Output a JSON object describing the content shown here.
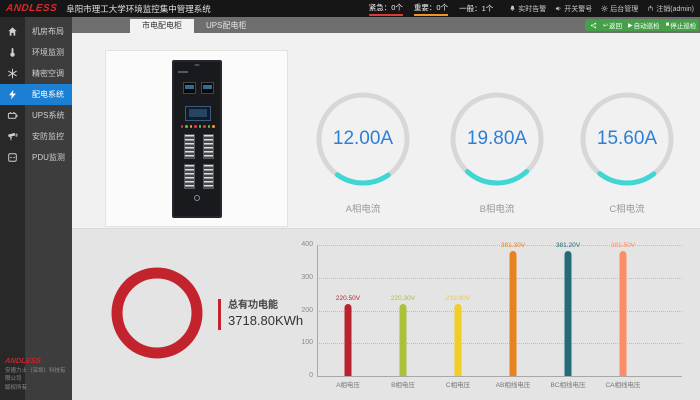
{
  "colors": {
    "accent_blue": "#1b7fd3",
    "gauge_arc_cyan": "#3fd6d4",
    "gauge_value_blue": "#2e7fd6",
    "energy_red": "#c3232c",
    "toolbar_green": "#46a04a",
    "alarm_urgent_red": "#e03a36",
    "alarm_major_orange": "#f09329"
  },
  "header": {
    "logo": "ANDLESS",
    "title": "阜阳市理工大学环境监控集中管理系统",
    "alarms": [
      {
        "text": "紧急：0个"
      },
      {
        "text": "重要：0个"
      },
      {
        "text": "一般：1个"
      }
    ],
    "buttons": [
      {
        "label": "实时告警",
        "icon": "bell-icon"
      },
      {
        "label": "开关警号",
        "icon": "speaker-icon"
      },
      {
        "label": "后台管理",
        "icon": "gear-icon"
      },
      {
        "label": "注销(admin)",
        "icon": "power-icon"
      }
    ]
  },
  "tabs": [
    {
      "label": "市电配电柜",
      "active": true
    },
    {
      "label": "UPS配电柜",
      "active": false
    }
  ],
  "toolbar": {
    "back": "返回",
    "auto_patrol": "自动巡检",
    "stop_patrol": "停止巡检"
  },
  "sidebar": {
    "items": [
      {
        "label": "机房布局",
        "icon": "home-icon"
      },
      {
        "label": "环境监测",
        "icon": "thermometer-icon"
      },
      {
        "label": "精密空调",
        "icon": "snowflake-icon"
      },
      {
        "label": "配电系统",
        "icon": "lightning-icon",
        "active": true
      },
      {
        "label": "UPS系统",
        "icon": "battery-icon"
      },
      {
        "label": "安防监控",
        "icon": "camera-icon"
      },
      {
        "label": "PDU监测",
        "icon": "socket-icon"
      }
    ],
    "footer": {
      "logo": "ANDLESS",
      "company": "安德力士（深圳）科技有限公司",
      "copyright": "版权所有"
    }
  },
  "gauges": [
    {
      "value": "12.00A",
      "label": "A相电流"
    },
    {
      "value": "19.80A",
      "label": "B相电流"
    },
    {
      "value": "15.60A",
      "label": "C相电流"
    }
  ],
  "energy": {
    "title": "总有功电能",
    "value": "3718.80KWh"
  },
  "chart_data": {
    "type": "bar",
    "title": "",
    "categories": [
      "A相电压",
      "B相电压",
      "C相电压",
      "AB相线电压",
      "BC相线电压",
      "CA相线电压"
    ],
    "values": [
      220.5,
      220.3,
      219.8,
      381.3,
      381.2,
      381.5
    ],
    "labels": [
      "220.50V",
      "220.30V",
      "219.80V",
      "381.30V",
      "381.20V",
      "381.50V"
    ],
    "colors": [
      "#b8232e",
      "#a9c23a",
      "#f2ce25",
      "#e8821e",
      "#226b77",
      "#fb8e67"
    ],
    "xlabel": "",
    "ylabel": "",
    "ylim": [
      0,
      400
    ],
    "yticks": [
      "0",
      "100",
      "200",
      "300",
      "400"
    ],
    "grid": "dotted-horizontal",
    "legend_position": "none"
  }
}
